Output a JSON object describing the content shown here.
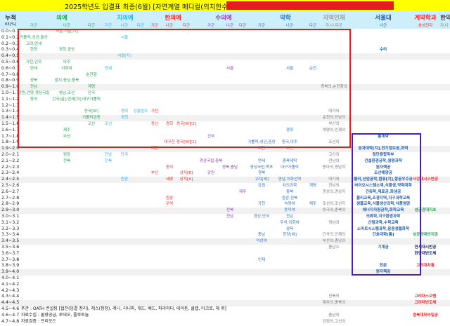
{
  "title": "2025학년도 입결표 최종(6월) [자연계열 메디컬(의치한수약)]",
  "colors": {
    "med": "#22a455",
    "den": "#2cb3e8",
    "kor": "#ee2b2b",
    "vet": "#8e44ad",
    "phar": "#2a74c4",
    "regional": "#777777",
    "snu": "#1f5db0",
    "contract": "#ee2b2b",
    "title_bg": "#ffff00",
    "header_bg": "#cdeefb",
    "redact": "#e41e1e",
    "box_red": "#e41e1e",
    "box_blue": "#4a1fb8"
  },
  "header": {
    "cum_label": "누적",
    "unit_label": "03[%]",
    "groups": [
      {
        "key": "med",
        "label": "의예"
      },
      {
        "key": "den",
        "label": "치의예"
      },
      {
        "key": "kor",
        "label": "한의예"
      },
      {
        "key": "vet",
        "label": "수의예"
      },
      {
        "key": "phar",
        "label": "약학"
      },
      {
        "key": "regional",
        "label": "지역인재"
      },
      {
        "key": "snu",
        "label": "서울대"
      },
      {
        "key": "contract",
        "label": "계약학과"
      },
      {
        "key": "korphar",
        "label": "한약"
      }
    ],
    "subs": [
      {
        "col": "med_ga",
        "label": "가군"
      },
      {
        "col": "med_na",
        "label": "나군"
      },
      {
        "col": "med_da",
        "label": "다군"
      },
      {
        "col": "den_ga",
        "label": "가군"
      },
      {
        "col": "den_na",
        "label": "나군"
      },
      {
        "col": "den_da",
        "label": "다군"
      },
      {
        "col": "kor_ga",
        "label": "가군"
      },
      {
        "col": "kor_na",
        "label": "나군"
      },
      {
        "col": "kor_da",
        "label": "다군"
      },
      {
        "col": "vet_ga",
        "label": "가군"
      },
      {
        "col": "vet_na",
        "label": "나군"
      },
      {
        "col": "vet_da",
        "label": "다군"
      },
      {
        "col": "phar_ga",
        "label": "가군"
      },
      {
        "col": "phar_na",
        "label": "나군"
      },
      {
        "col": "phar_da",
        "label": "다군"
      },
      {
        "col": "regional",
        "label": "가,나,다군"
      },
      {
        "col": "snu",
        "label": "나군"
      },
      {
        "col": "contract",
        "label": "삼성전자"
      },
      {
        "col": "korphar",
        "label": "가,나"
      }
    ]
  },
  "rows": [
    {
      "label": "0.0~0.1",
      "cells": [
        {
          "col": "med_na",
          "text": "서울,서울[지]"
        }
      ]
    },
    {
      "label": "0.1~0.2",
      "cells": [
        {
          "col": "med_ga",
          "text": "가톨릭,성균,울산"
        },
        {
          "col": "den_na",
          "text": "서울"
        }
      ]
    },
    {
      "label": "0.2~0.3",
      "cells": [
        {
          "col": "med_ga",
          "text": "고려,연세"
        }
      ]
    },
    {
      "label": "0.3~0.4",
      "cells": [
        {
          "col": "med_ga",
          "text": "한양"
        },
        {
          "col": "med_na",
          "text": "경희,중앙"
        },
        {
          "col": "snu",
          "text": "수리"
        }
      ]
    },
    {
      "label": "0.4~0.5",
      "cells": [
        {
          "col": "den_na",
          "text": "서울[지]"
        }
      ]
    },
    {
      "label": "0.5~0.6",
      "cells": [
        {
          "col": "med_ga",
          "text": "가천,인하"
        },
        {
          "col": "med_na",
          "text": "아주"
        }
      ]
    },
    {
      "label": "0.6~0.7",
      "cells": [
        {
          "col": "med_ga",
          "text": "연세"
        },
        {
          "col": "med_na",
          "text": "이화여"
        },
        {
          "col": "den_ga",
          "text": "연세"
        },
        {
          "col": "vet_na",
          "text": "서울"
        },
        {
          "col": "phar_na",
          "text": "서울"
        },
        {
          "col": "phar_da",
          "text": "순천"
        }
      ]
    },
    {
      "label": "0.7~0.8",
      "cells": [
        {
          "col": "med_da",
          "text": "순천향"
        }
      ]
    },
    {
      "label": "0.8~0.9",
      "cells": [
        {
          "col": "med_ga",
          "text": "경북"
        },
        {
          "col": "med_na",
          "text": "을지,충남,충북"
        }
      ]
    },
    {
      "label": "0.9~1.0",
      "cells": [
        {
          "col": "med_ga",
          "text": "전남"
        },
        {
          "col": "med_da",
          "text": "계명"
        },
        {
          "col": "regional",
          "text": "경북의,순천향의"
        }
      ]
    },
    {
      "label": "1.0~1.1",
      "cells": [
        {
          "col": "med_ga",
          "text": "강원,건양,경상국립"
        },
        {
          "col": "med_na",
          "text": "영남,조선"
        },
        {
          "col": "med_da",
          "text": "단국"
        }
      ]
    },
    {
      "label": "1.1~1.2",
      "cells": [
        {
          "col": "med_ga",
          "text": "동아"
        },
        {
          "col": "med_na",
          "text": "건국[글],연세[미]"
        },
        {
          "col": "med_da",
          "text": "대구가톨릭"
        }
      ]
    },
    {
      "label": "1.2~1.3",
      "cells": []
    },
    {
      "label": "1.3~1.4",
      "cells": [
        {
          "col": "med_da",
          "text": "동국[W]"
        },
        {
          "col": "den_na",
          "text": "경희"
        },
        {
          "col": "den_da",
          "text": "강릉원주"
        },
        {
          "col": "kor_ga",
          "text": "가천"
        },
        {
          "col": "regional",
          "text": "대가의"
        }
      ]
    },
    {
      "label": "1.4~1.5",
      "cells": [
        {
          "col": "med_da",
          "text": "가톨릭관동"
        },
        {
          "col": "den_na",
          "text": "경희"
        },
        {
          "col": "regional",
          "text": "순천의,전남의"
        }
      ]
    },
    {
      "label": "1.5~1.6",
      "cells": [
        {
          "col": "med_da",
          "text": "고신"
        },
        {
          "col": "den_ga",
          "text": "조선"
        },
        {
          "col": "kor_ga",
          "text": "동신"
        },
        {
          "col": "kor_na",
          "text": "경희"
        },
        {
          "col": "kor_da",
          "text": "동국[W][2]"
        },
        {
          "col": "regional",
          "text": "부산의"
        }
      ]
    },
    {
      "label": "1.6~1.7",
      "cells": [
        {
          "col": "med_na",
          "text": "제주"
        },
        {
          "col": "phar_na",
          "text": "경희"
        },
        {
          "col": "regional",
          "text": "계명의,인제의"
        }
      ]
    },
    {
      "label": "1.7~1.8",
      "cells": [
        {
          "col": "med_na",
          "text": "부산"
        },
        {
          "col": "vet_ga",
          "text": "건국"
        },
        {
          "col": "snu",
          "text": "통계학"
        }
      ]
    },
    {
      "label": "1.8~1.9",
      "cells": [
        {
          "col": "kor_na",
          "text": "대구한"
        },
        {
          "col": "kor_da",
          "text": "동국[W][1]"
        },
        {
          "col": "phar_ga",
          "text": "가톨릭,성균,중앙"
        },
        {
          "col": "phar_na",
          "text": "동국,아주"
        },
        {
          "col": "regional",
          "text": "조선의"
        }
      ]
    },
    {
      "label": "1.9~2.0",
      "cells": [
        {
          "col": "kor_ga",
          "text": "대전"
        },
        {
          "col": "phar_ga",
          "text": "대전"
        },
        {
          "col": "phar_na",
          "text": "부산"
        },
        {
          "col": "snu",
          "text": "공과대학[지],전기정보공,화학"
        }
      ]
    },
    {
      "label": "2.0~2.1",
      "cells": [
        {
          "col": "med_na",
          "text": "원광"
        },
        {
          "col": "den_ga",
          "text": "전남"
        },
        {
          "col": "den_na",
          "text": "단국"
        },
        {
          "col": "regional",
          "text": "고신의"
        },
        {
          "col": "snu",
          "text": "첨단융합학부"
        }
      ]
    },
    {
      "label": "2.1~2.2",
      "cells": [
        {
          "col": "med_na",
          "text": "전북"
        },
        {
          "col": "den_ga",
          "text": "전북"
        },
        {
          "col": "vet_ga",
          "text": "경상국립,충북"
        },
        {
          "col": "phar_ga",
          "text": "연세"
        },
        {
          "col": "phar_na",
          "text": "충북제약"
        },
        {
          "col": "regional",
          "text": "전남의"
        },
        {
          "col": "snu",
          "text": "건설환경공학,생명과학"
        }
      ]
    },
    {
      "label": "2.2~2.3",
      "cells": [
        {
          "col": "kor_na",
          "text": "동의"
        },
        {
          "col": "vet_na",
          "text": "경북,충남"
        },
        {
          "col": "phar_ga",
          "text": "경상국립,목포"
        },
        {
          "col": "phar_na",
          "text": "대구가톨릭"
        },
        {
          "col": "regional",
          "text": "동아의,영남의"
        },
        {
          "col": "snu",
          "text": "원자핵공"
        }
      ]
    },
    {
      "label": "2.3~2.4",
      "cells": [
        {
          "col": "kor_ga",
          "text": "부산"
        },
        {
          "col": "kor_da",
          "text": "상지[B]"
        },
        {
          "col": "vet_ga",
          "text": "강원"
        },
        {
          "col": "phar_ga",
          "text": "경북"
        },
        {
          "col": "snu",
          "text": "조선해양공"
        }
      ]
    },
    {
      "label": "2.4~2.5",
      "cells": [
        {
          "col": "den_na",
          "text": "원광"
        },
        {
          "col": "kor_na",
          "text": "세명"
        },
        {
          "col": "kor_da",
          "text": "상지[A]"
        },
        {
          "col": "phar_ga",
          "text": "고려[세]"
        },
        {
          "col": "phar_na",
          "text": "영남,이화선약"
        },
        {
          "col": "regional",
          "text": "대가의"
        },
        {
          "col": "snu",
          "text": "물리,산업공학,컴퓨[지],항공우주공"
        },
        {
          "col": "contract",
          "text": "서강대시스반공",
          "color": "#ee2b2b"
        }
      ]
    },
    {
      "label": "2.5~2.6",
      "cells": [
        {
          "col": "phar_ga",
          "text": "강원"
        },
        {
          "col": "phar_na",
          "text": "차의과학"
        },
        {
          "col": "phar_da",
          "text": "계명"
        },
        {
          "col": "regional",
          "text": "전남의"
        },
        {
          "col": "snu",
          "text": "바이오시스템소재,식품생,약학대학"
        }
      ]
    },
    {
      "label": "2.6~2.7",
      "cells": [
        {
          "col": "vet_da",
          "text": "제주"
        },
        {
          "col": "phar_na",
          "text": "충북"
        },
        {
          "col": "regional",
          "text": "경상의,경상지"
        },
        {
          "col": "snu",
          "text": "건축학,재료공,화생공"
        }
      ]
    },
    {
      "label": "2.7~2.8",
      "cells": [
        {
          "col": "kor_na",
          "text": "원광"
        },
        {
          "col": "phar_na",
          "text": "원광,전북"
        },
        {
          "col": "snu",
          "text": "물리교육,조경지역,지구과학교육"
        }
      ]
    },
    {
      "label": "2.8~2.9",
      "cells": [
        {
          "col": "kor_na",
          "text": "우석"
        },
        {
          "col": "phar_ga",
          "text": "가천"
        },
        {
          "col": "phar_na",
          "text": "숙명여"
        },
        {
          "col": "phar_da",
          "text": "제주"
        },
        {
          "col": "regional",
          "text": "조선의,조선지"
        },
        {
          "col": "snu",
          "text": "생물교육,식물생산과학,식품영양"
        }
      ]
    },
    {
      "label": "2.9~3.0",
      "cells": [
        {
          "col": "vet_na",
          "text": "전북"
        },
        {
          "col": "phar_na",
          "text": "동덕여"
        },
        {
          "col": "regional",
          "text": "동국의,충북의"
        },
        {
          "col": "snu",
          "text": "에너지자원공학,화학교육"
        },
        {
          "col": "contract",
          "text": "성균관대지초",
          "color": "#22a455"
        }
      ]
    },
    {
      "label": "3.0~3.1",
      "cells": [
        {
          "col": "vet_na",
          "text": "전남"
        },
        {
          "col": "phar_ga",
          "text": "경상,단국"
        },
        {
          "col": "phar_na",
          "text": "전남"
        },
        {
          "col": "snu",
          "text": "의류학,지구환경과학"
        }
      ]
    },
    {
      "label": "3.1~3.2",
      "cells": [
        {
          "col": "phar_na",
          "text": "우석,이화여"
        },
        {
          "col": "regional",
          "text": "영남의"
        },
        {
          "col": "snu",
          "text": "산림과학,수학교육"
        }
      ]
    },
    {
      "label": "3.2~3.3",
      "cells": [
        {
          "col": "phar_na",
          "text": "삼육"
        },
        {
          "col": "snu",
          "text": "스마트시스템과학,응용생물화학"
        }
      ]
    },
    {
      "label": "3.3~3.4",
      "cells": [
        {
          "col": "phar_ga",
          "text": "충남"
        },
        {
          "col": "phar_na",
          "text": "한양[에]"
        },
        {
          "col": "regional",
          "text": "건국의,인제의"
        },
        {
          "col": "snu",
          "text": "간호대학[통]"
        },
        {
          "col": "contract",
          "text": "성균관대반지공",
          "color": "#22a455"
        }
      ]
    },
    {
      "label": "3.4~3.5",
      "cells": [
        {
          "col": "phar_ga",
          "text": "덕성여"
        },
        {
          "col": "regional",
          "text": "부산의,충남의"
        }
      ]
    },
    {
      "label": "3.5~3.6",
      "cells": [
        {
          "col": "regional",
          "text": "충남수"
        },
        {
          "col": "snu",
          "text": "기계공"
        },
        {
          "col": "contract",
          "text": "연세대시반공",
          "color": "#1a2a6c"
        }
      ]
    },
    {
      "label": "3.6~3.7",
      "cells": [
        {
          "col": "contract",
          "text": "한양대반도체",
          "color": "#1a2a6c"
        }
      ]
    },
    {
      "label": "3.7~3.8",
      "cells": [
        {
          "col": "phar_ga",
          "text": "인제"
        }
      ]
    },
    {
      "label": "3.8~3.9",
      "cells": [
        {
          "col": "snu",
          "text": "천문"
        },
        {
          "col": "contract",
          "text": "고려대차통",
          "color": "#ee2b2b"
        }
      ]
    },
    {
      "label": "3.9~4.0",
      "cells": [
        {
          "col": "snu",
          "text": "원자핵공"
        }
      ]
    },
    {
      "label": "4.0~4.1",
      "cells": []
    },
    {
      "label": "4.1~4.2",
      "cells": []
    },
    {
      "label": "4.2~4.3",
      "cells": []
    },
    {
      "label": "4.3~4.4",
      "cells": [
        {
          "col": "regional",
          "text": "전북의"
        },
        {
          "col": "contract",
          "text": "고려대스오랩",
          "color": "#ee2b2b"
        }
      ]
    },
    {
      "label": "4.4~4.5",
      "cells": [
        {
          "col": "regional",
          "text": "제주의,충북의"
        },
        {
          "col": "contract",
          "text": "고려대반도체",
          "color": "#ee2b2b"
        }
      ]
    },
    {
      "label": "4.5~4.6",
      "footer": "주관 : OATH 컨설팅 [협찬(입결 정리), 레스(정정), 레니, 리니퍼, 캐드, 베드, 파라미터, 테이튼, 클랩, 아크로, 체 퀴]",
      "cells": []
    },
    {
      "label": "4.6~4.7",
      "footer": "자료수집 : 물량공급, 로데오, 플루토늄",
      "cells": [
        {
          "col": "regional",
          "text": "충남의"
        },
        {
          "col": "contract",
          "text": "경북대모바일공",
          "color": "#ee2b2b"
        }
      ]
    },
    {
      "label": "4.7~4.8",
      "footer": "자료검증 : 프리오드",
      "cells": [
        {
          "col": "regional",
          "text": "강원의,고신의"
        }
      ]
    }
  ]
}
